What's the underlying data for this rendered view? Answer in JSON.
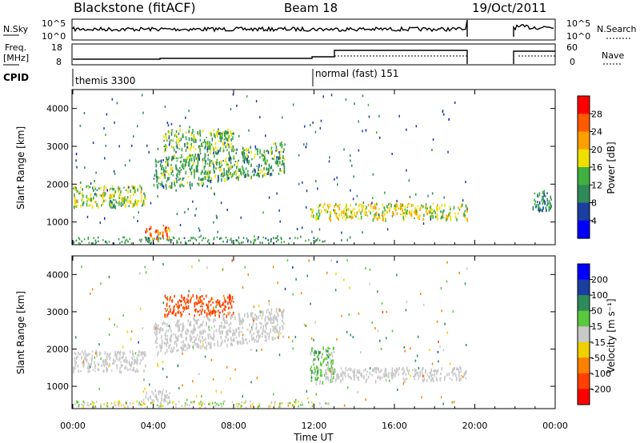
{
  "header": {
    "station": "Blackstone (fitACF)",
    "beam": "Beam 18",
    "date": "19/Oct/2011"
  },
  "summary_panels": {
    "noise": {
      "left_label": "N.Sky",
      "left_ticks": [
        "10^5",
        "10^0"
      ],
      "right_label": "N.Search",
      "right_ticks": [
        "10^5",
        "10^0"
      ]
    },
    "freq": {
      "left_label_1": "Freq.",
      "left_label_2": "[MHz]",
      "left_ticks": [
        "18",
        "8"
      ],
      "right_label": "Nave",
      "right_ticks": [
        "60",
        "0"
      ]
    },
    "cpid": {
      "label": "CPID",
      "modes": [
        {
          "name": "themis 3300",
          "start_hour": 0
        },
        {
          "name": "normal (fast) 151",
          "start_hour": 12
        }
      ]
    }
  },
  "chart_data": [
    {
      "type": "heatmap",
      "name": "power",
      "ylabel": "Slant Range [km]",
      "ylim": [
        400,
        4500
      ],
      "y_ticks": [
        1000,
        2000,
        3000,
        4000
      ],
      "xlim_hours": [
        0,
        24
      ],
      "colorbar": {
        "label": "Power [dB]",
        "ticks": [
          "28",
          "24",
          "20",
          "16",
          "12",
          "8",
          "4"
        ],
        "colors": [
          "#ff0000",
          "#ff5a00",
          "#ffa000",
          "#f0e000",
          "#40b040",
          "#2e8b57",
          "#1a3fa0",
          "#0000ff"
        ]
      },
      "echo_regions": [
        {
          "t_start": 0.0,
          "t_end": 3.6,
          "r_start": 1300,
          "r_end": 2100,
          "level": 16
        },
        {
          "t_start": 3.6,
          "t_end": 4.8,
          "r_start": 500,
          "r_end": 1000,
          "level": 26
        },
        {
          "t_start": 4.5,
          "t_end": 8.0,
          "r_start": 2800,
          "r_end": 3600,
          "level": 14
        },
        {
          "t_start": 4.0,
          "t_end": 10.5,
          "r_start": 1700,
          "r_end": 2900,
          "level": 12
        },
        {
          "t_start": 11.8,
          "t_end": 19.6,
          "r_start": 1000,
          "r_end": 1600,
          "level": 18
        },
        {
          "t_start": 22.8,
          "t_end": 23.8,
          "r_start": 1200,
          "r_end": 2000,
          "level": 8
        }
      ]
    },
    {
      "type": "heatmap",
      "name": "velocity",
      "ylabel": "Slant Range [km]",
      "ylim": [
        400,
        4500
      ],
      "y_ticks": [
        1000,
        2000,
        3000,
        4000
      ],
      "xlim_hours": [
        0,
        24
      ],
      "colorbar": {
        "label": "Velocity [m s⁻¹]",
        "ticks": [
          "200",
          "100",
          "50",
          "15",
          "-15",
          "-50",
          "-100",
          "-200"
        ],
        "colors": [
          "#0000ff",
          "#1a3fa0",
          "#2e8b57",
          "#5ac83c",
          "#c8c8c8",
          "#f0d000",
          "#ff8000",
          "#ff4000",
          "#ff0000"
        ]
      },
      "echo_regions": [
        {
          "t_start": 0.0,
          "t_end": 3.6,
          "r_start": 1300,
          "r_end": 2100,
          "level": 0
        },
        {
          "t_start": 3.6,
          "t_end": 4.8,
          "r_start": 500,
          "r_end": 1000,
          "level": 0
        },
        {
          "t_start": 4.5,
          "t_end": 8.0,
          "r_start": 2800,
          "r_end": 3600,
          "level": -120
        },
        {
          "t_start": 4.0,
          "t_end": 10.5,
          "r_start": 1700,
          "r_end": 2900,
          "level": 0
        },
        {
          "t_start": 11.8,
          "t_end": 13.0,
          "r_start": 900,
          "r_end": 2300,
          "level": 30
        },
        {
          "t_start": 12.5,
          "t_end": 19.6,
          "r_start": 1100,
          "r_end": 1600,
          "level": 0
        }
      ]
    }
  ],
  "x_axis": {
    "label": "Time UT",
    "tick_labels": [
      "00:00",
      "04:00",
      "08:00",
      "12:00",
      "16:00",
      "20:00",
      "00:00"
    ]
  }
}
